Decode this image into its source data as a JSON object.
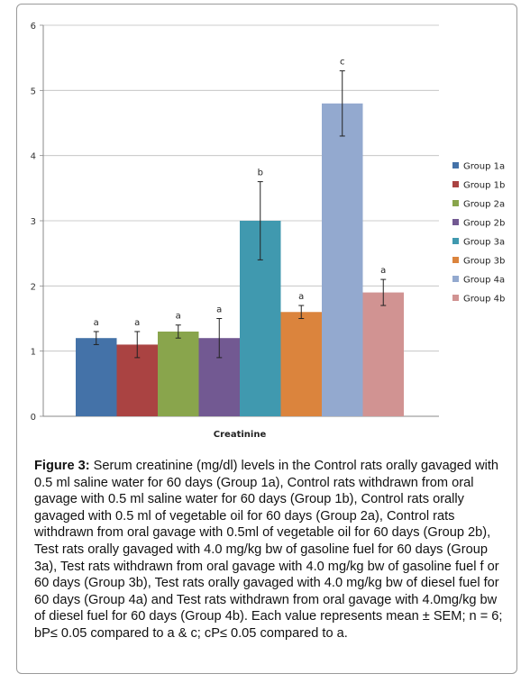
{
  "chart_data": {
    "type": "bar",
    "xlabel": "Creatinine",
    "ylim": [
      0,
      6
    ],
    "yticks": [
      0,
      1,
      2,
      3,
      4,
      5,
      6
    ],
    "grid": true,
    "legend_position": "right",
    "series": [
      {
        "name": "Group 1a",
        "value": 1.2,
        "error": 0.1,
        "label": "a",
        "color": "#4472a8"
      },
      {
        "name": "Group 1b",
        "value": 1.1,
        "error": 0.2,
        "label": "a",
        "color": "#aa4342"
      },
      {
        "name": "Group 2a",
        "value": 1.3,
        "error": 0.1,
        "label": "a",
        "color": "#89a54c"
      },
      {
        "name": "Group 2b",
        "value": 1.2,
        "error": 0.3,
        "label": "a",
        "color": "#725992"
      },
      {
        "name": "Group 3a",
        "value": 3.0,
        "error": 0.6,
        "label": "b",
        "color": "#4099af"
      },
      {
        "name": "Group 3b",
        "value": 1.6,
        "error": 0.1,
        "label": "a",
        "color": "#db843d"
      },
      {
        "name": "Group 4a",
        "value": 4.8,
        "error": 0.5,
        "label": "c",
        "color": "#93a9cf"
      },
      {
        "name": "Group 4b",
        "value": 1.9,
        "error": 0.2,
        "label": "a",
        "color": "#d19392"
      }
    ]
  },
  "caption": {
    "label": "Figure 3:",
    "text": " Serum creatinine (mg/dl) levels in the Control rats orally gavaged with 0.5 ml saline water for 60 days (Group 1a), Control rats withdrawn from oral gavage with 0.5 ml saline water  for 60 days (Group 1b), Control rats orally gavaged with 0.5 ml of vegetable oil for 60 days (Group 2a), Control rats withdrawn from oral gavage with 0.5ml of vegetable oil for  60 days (Group 2b), Test rats orally gavaged with 4.0 mg/kg bw of gasoline fuel for 60 days (Group 3a), Test rats withdrawn from oral gavage with 4.0 mg/kg bw of gasoline fuel f or 60 days (Group 3b), Test rats orally gavaged with 4.0 mg/kg bw of diesel fuel for 60 days (Group 4a) and Test rats withdrawn from oral gavage with 4.0mg/kg bw of diesel fuel for 60 days (Group 4b). Each value represents mean ± SEM; n = 6; bP≤ 0.05 compared to a & c; cP≤ 0.05 compared to a."
  }
}
